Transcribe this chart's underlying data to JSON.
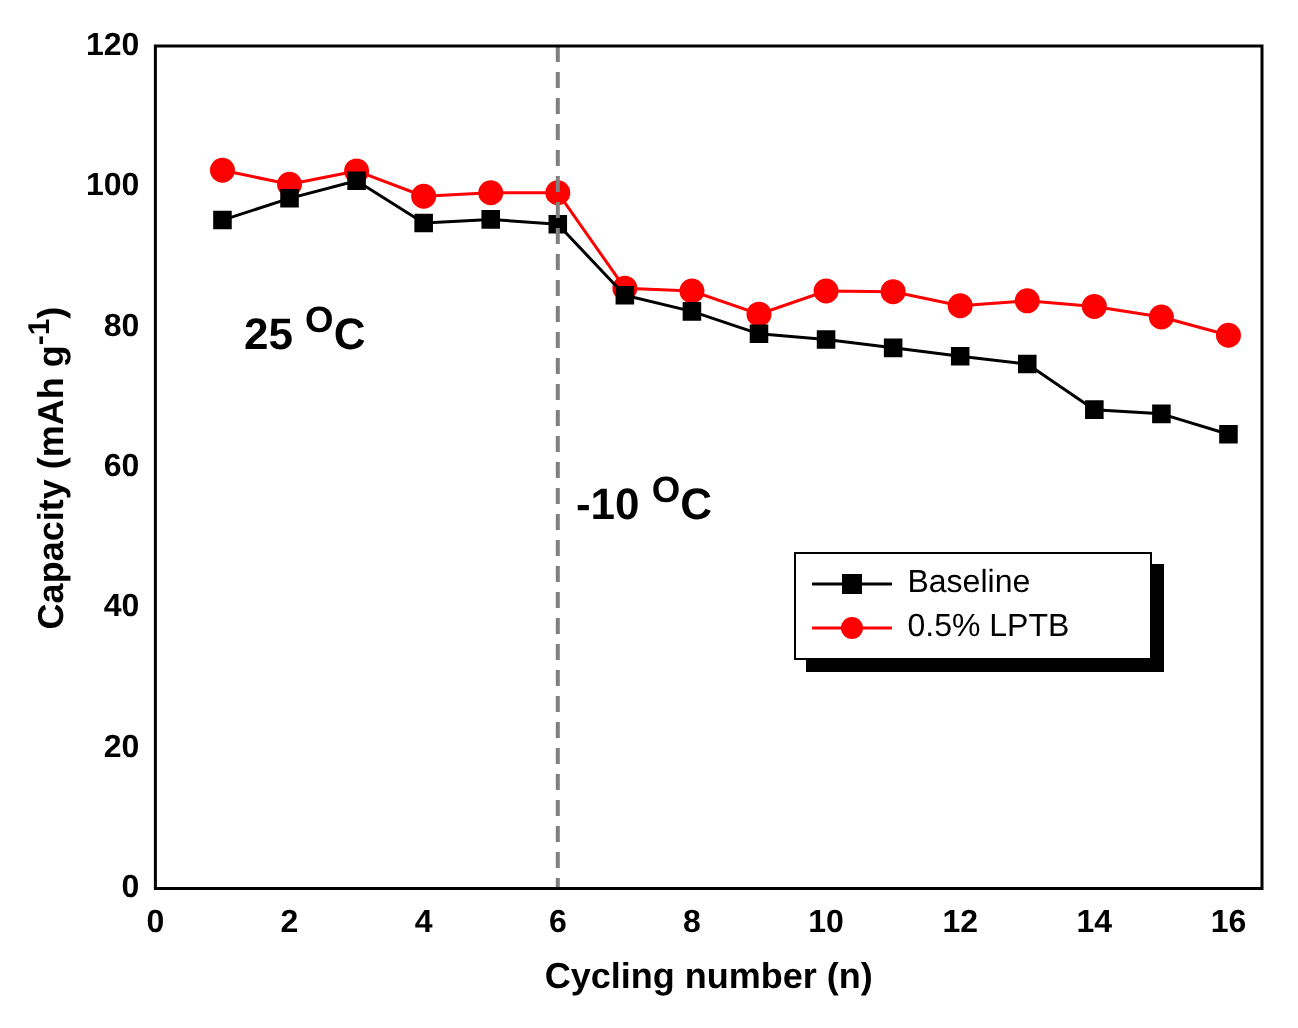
{
  "chart_data": {
    "type": "line",
    "xlabel": "Cycling number (n)",
    "ylabel": "Capacity (mAh g$^{-1}$)",
    "x": [
      1,
      2,
      3,
      4,
      5,
      6,
      7,
      8,
      9,
      10,
      11,
      12,
      13,
      14,
      15,
      16
    ],
    "series": [
      {
        "name": "Baseline",
        "color": "#000000",
        "marker": "square",
        "values": [
          95.2,
          98.3,
          100.8,
          94.8,
          95.3,
          94.6,
          84.5,
          82.2,
          79,
          78.2,
          77,
          75.8,
          74.7,
          68.2,
          67.6,
          64.7
        ]
      },
      {
        "name": "0.5% LPTB",
        "color": "#ff0000",
        "marker": "circle",
        "values": [
          102.3,
          100.3,
          102.2,
          98.6,
          99.1,
          99.1,
          85.5,
          85.1,
          81.8,
          85.1,
          85,
          83,
          83.7,
          82.9,
          81.4,
          78.8
        ]
      }
    ],
    "xlim": [
      0,
      16.5
    ],
    "xticks": [
      0,
      2,
      4,
      6,
      8,
      10,
      12,
      14,
      16
    ],
    "ylim": [
      0,
      120
    ],
    "yticks": [
      0,
      20,
      40,
      60,
      80,
      100,
      120
    ],
    "grid": false,
    "legend": "right",
    "line_style": "solid",
    "ref_lines": [
      {
        "axis": "x",
        "value": 6,
        "color": "#808080",
        "line_style": "dashed"
      }
    ],
    "annotations": [
      "25 $^{O}$C",
      "-10 $^{O}$C"
    ]
  }
}
